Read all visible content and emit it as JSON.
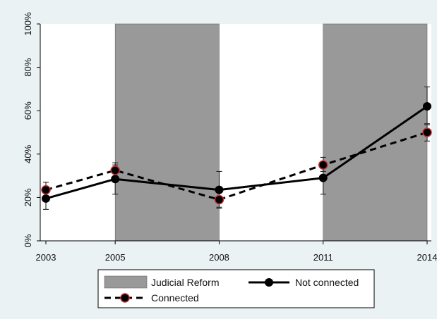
{
  "chart_data": {
    "type": "line",
    "x": [
      2003,
      2005,
      2008,
      2011,
      2014
    ],
    "x_tick_labels": [
      "2003",
      "2005",
      "2008",
      "2011",
      "2014"
    ],
    "ylim": [
      0,
      100
    ],
    "y_ticks": [
      0,
      20,
      40,
      60,
      80,
      100
    ],
    "y_tick_labels": [
      "0%",
      "20%",
      "40%",
      "60%",
      "80%",
      "100%"
    ],
    "shaded_periods": [
      {
        "label": "Judicial Reform",
        "x_start": 2005,
        "x_end": 2008
      },
      {
        "label": "Judicial Reform",
        "x_start": 2011,
        "x_end": 2014
      }
    ],
    "series": [
      {
        "name": "Not connected",
        "style": "solid",
        "color": "#000000",
        "values": [
          19.5,
          28.5,
          23.5,
          29,
          62
        ],
        "ci_low": [
          14.5,
          21.5,
          15.5,
          21.5,
          53.5
        ],
        "ci_high": [
          24,
          35,
          32,
          36.5,
          71
        ]
      },
      {
        "name": "Connected",
        "style": "dashed",
        "color": "#000000",
        "values": [
          23.5,
          32.5,
          19,
          35,
          50
        ],
        "ci_low": [
          20,
          29.5,
          15,
          32,
          46
        ],
        "ci_high": [
          27,
          36,
          23,
          38.5,
          54
        ]
      }
    ],
    "legend": {
      "placement": "bottom",
      "entries": [
        "Judicial Reform",
        "Not connected",
        "Connected"
      ]
    },
    "grid": false,
    "colors": {
      "background": "#eaf2f3",
      "plot_area": "#ffffff",
      "shade": "#999999",
      "marker_outline": "#c8302e"
    }
  }
}
